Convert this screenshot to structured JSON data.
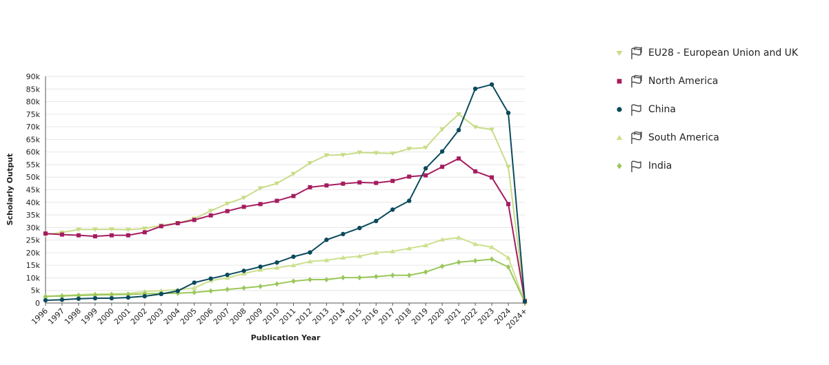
{
  "chart_data": {
    "type": "line",
    "title": "",
    "xlabel": "Publication Year",
    "ylabel": "Scholarly Output",
    "categories": [
      "1996",
      "1997",
      "1998",
      "1999",
      "2000",
      "2001",
      "2002",
      "2003",
      "2004",
      "2005",
      "2006",
      "2007",
      "2008",
      "2009",
      "2010",
      "2011",
      "2012",
      "2013",
      "2014",
      "2015",
      "2016",
      "2017",
      "2018",
      "2019",
      "2020",
      "2021",
      "2022",
      "2023",
      "2024",
      "2024+"
    ],
    "ylim": [
      0,
      90000
    ],
    "yticks": [
      0,
      5000,
      10000,
      15000,
      20000,
      25000,
      30000,
      35000,
      40000,
      45000,
      50000,
      55000,
      60000,
      65000,
      70000,
      75000,
      80000,
      85000,
      90000
    ],
    "ytick_labels": [
      "0",
      "5k",
      "10k",
      "15k",
      "20k",
      "25k",
      "30k",
      "35k",
      "40k",
      "45k",
      "50k",
      "55k",
      "60k",
      "65k",
      "70k",
      "75k",
      "80k",
      "85k",
      "90k"
    ],
    "grid": "horizontal",
    "legend_position": "right",
    "series": [
      {
        "name": "EU28 - European Union and UK",
        "color": "#c8dc87",
        "marker": "triangle-down",
        "flag_icon": "multi-flag-icon",
        "values": [
          27200,
          28000,
          29200,
          29200,
          29300,
          29100,
          29600,
          30800,
          31800,
          33500,
          36600,
          39500,
          41800,
          45600,
          47500,
          51300,
          55600,
          58700,
          58800,
          59800,
          59600,
          59400,
          61300,
          61700,
          69000,
          75000,
          69900,
          68900,
          54000,
          1000
        ]
      },
      {
        "name": "North America",
        "color": "#a51c5f",
        "marker": "square",
        "flag_icon": "multi-flag-icon",
        "values": [
          27600,
          27200,
          26900,
          26500,
          26900,
          26900,
          28100,
          30500,
          31700,
          33000,
          34800,
          36500,
          38200,
          39300,
          40600,
          42500,
          46000,
          46700,
          47400,
          47900,
          47700,
          48500,
          50200,
          50700,
          54100,
          57400,
          52300,
          49900,
          39300,
          700
        ]
      },
      {
        "name": "China",
        "color": "#0b4a5c",
        "marker": "circle",
        "flag_icon": "flag-icon",
        "values": [
          1100,
          1300,
          1700,
          1900,
          1900,
          2200,
          2700,
          3600,
          4800,
          8100,
          9700,
          11200,
          12800,
          14400,
          16100,
          18400,
          20100,
          25100,
          27400,
          29800,
          32600,
          37100,
          40600,
          53500,
          60200,
          68700,
          85100,
          86800,
          75500,
          600
        ]
      },
      {
        "name": "South America",
        "color": "#cde08e",
        "marker": "triangle-up",
        "flag_icon": "multi-flag-icon",
        "values": [
          2700,
          3000,
          3300,
          3600,
          3700,
          3800,
          4600,
          4900,
          5300,
          6000,
          8900,
          10000,
          11700,
          13200,
          14000,
          15000,
          16500,
          17000,
          18000,
          18600,
          20000,
          20500,
          21700,
          22900,
          25200,
          26000,
          23400,
          22200,
          18000,
          300
        ]
      },
      {
        "name": "India",
        "color": "#9bc75a",
        "marker": "diamond",
        "flag_icon": "flag-icon",
        "values": [
          2600,
          2800,
          3000,
          3200,
          3300,
          3400,
          3700,
          3800,
          3900,
          4200,
          4800,
          5400,
          6000,
          6600,
          7600,
          8700,
          9300,
          9300,
          10100,
          10100,
          10500,
          11000,
          11000,
          12300,
          14600,
          16200,
          16800,
          17400,
          14300,
          300
        ]
      }
    ]
  }
}
